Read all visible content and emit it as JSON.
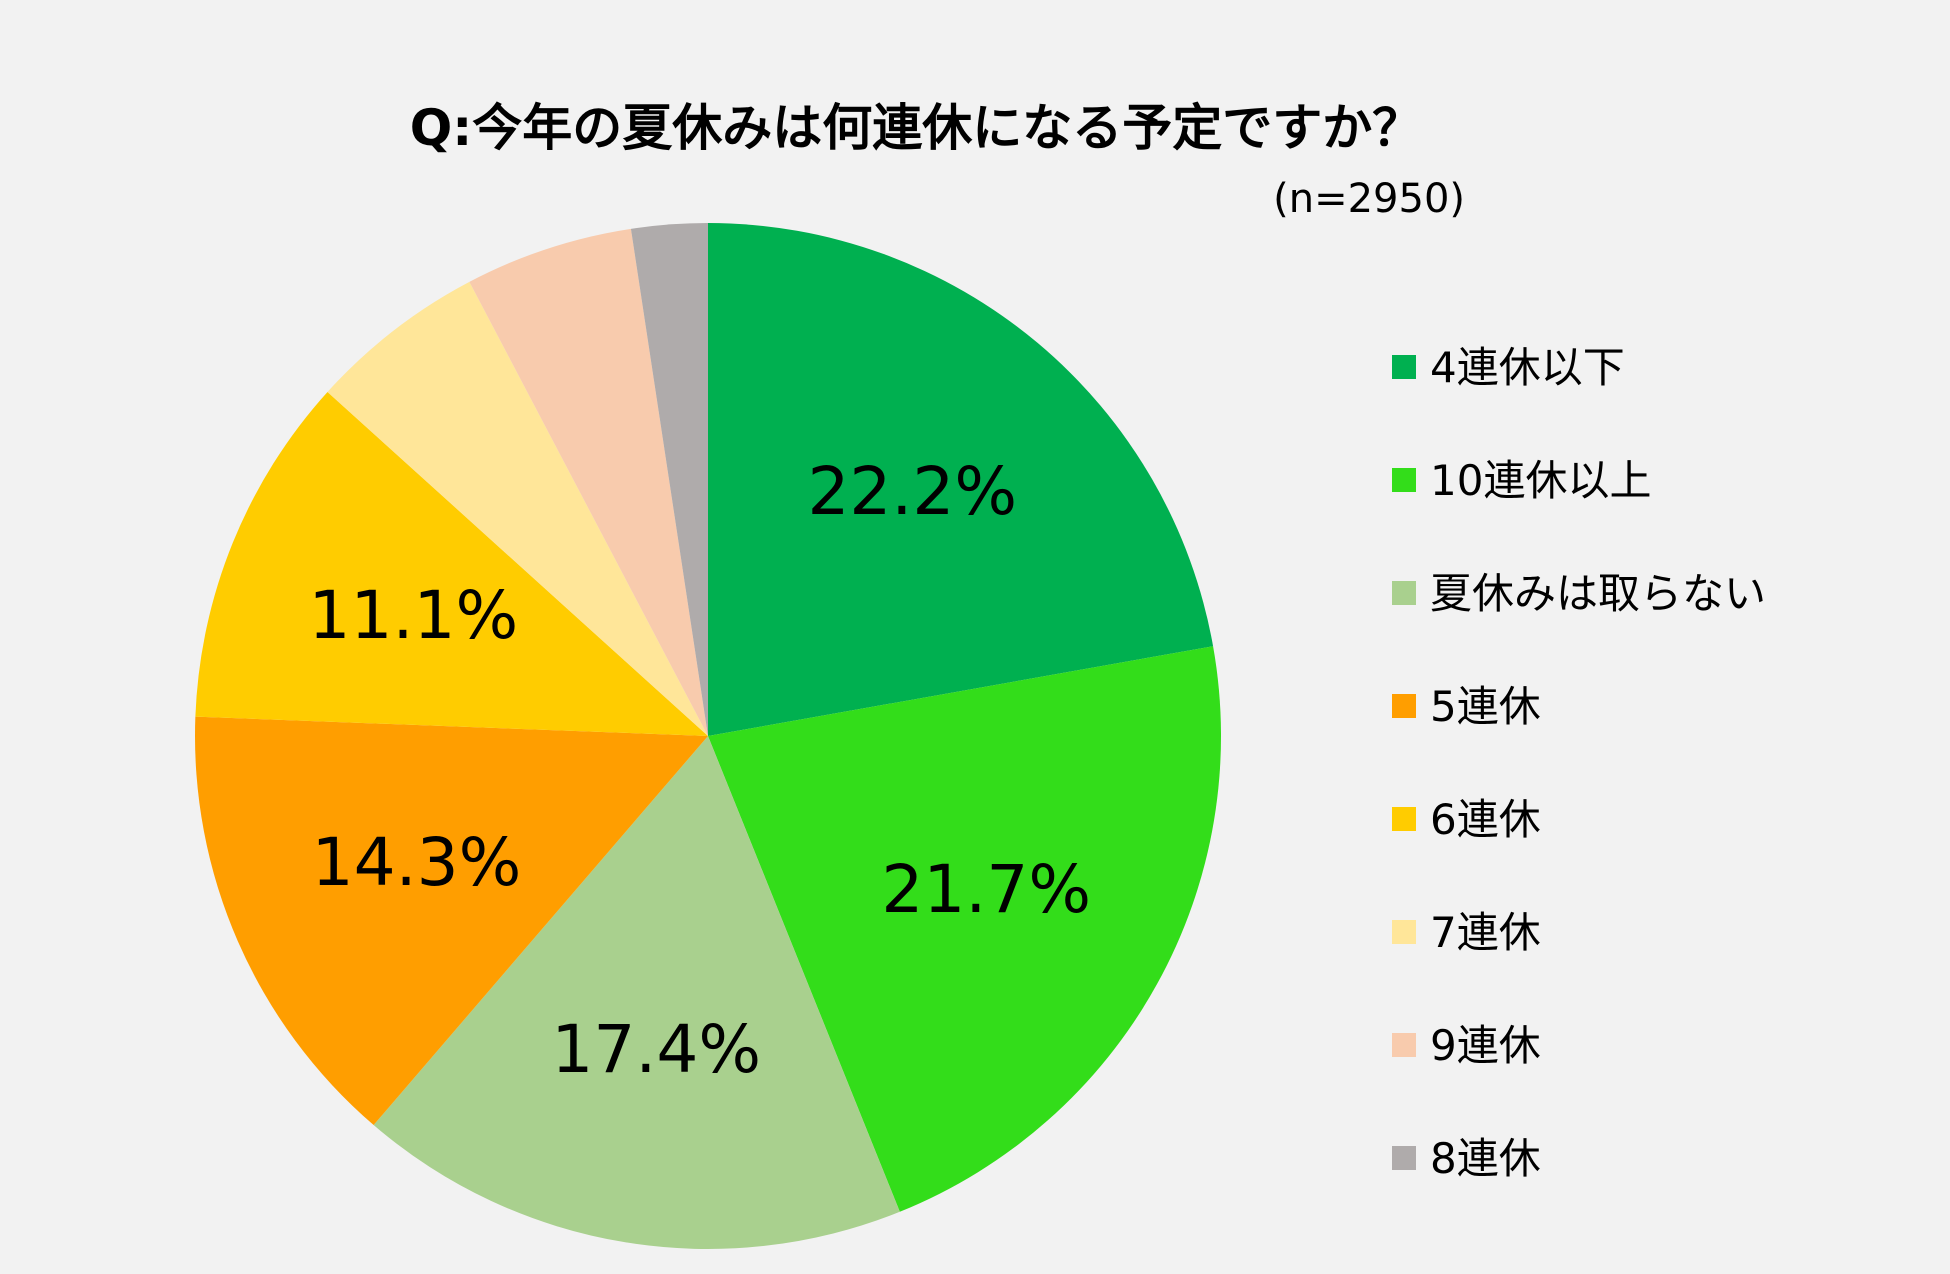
{
  "chart_data": {
    "type": "pie",
    "title": "Q:今年の夏休みは何連休になる予定ですか？",
    "note": "(n=2950)",
    "start_angle_deg": 0,
    "direction": "clockwise",
    "legend_position": "right",
    "slices": [
      {
        "name": "4連休以下",
        "value": 22.2,
        "label": "22.2%",
        "color": "#00b050"
      },
      {
        "name": "10連休以上",
        "value": 21.7,
        "label": "21.7%",
        "color": "#33dd1a"
      },
      {
        "name": "夏休みは取らない",
        "value": 17.4,
        "label": "17.4%",
        "color": "#a9d08e"
      },
      {
        "name": "5連休",
        "value": 14.3,
        "label": "14.3%",
        "color": "#ff9e00"
      },
      {
        "name": "6連休",
        "value": 11.1,
        "label": "11.1%",
        "color": "#ffcc00"
      },
      {
        "name": "7連休",
        "value": 5.6,
        "label": "",
        "color": "#ffe699"
      },
      {
        "name": "9連休",
        "value": 5.3,
        "label": "",
        "color": "#f8cbad"
      },
      {
        "name": "8連休",
        "value": 2.4,
        "label": "",
        "color": "#afabab"
      }
    ]
  }
}
